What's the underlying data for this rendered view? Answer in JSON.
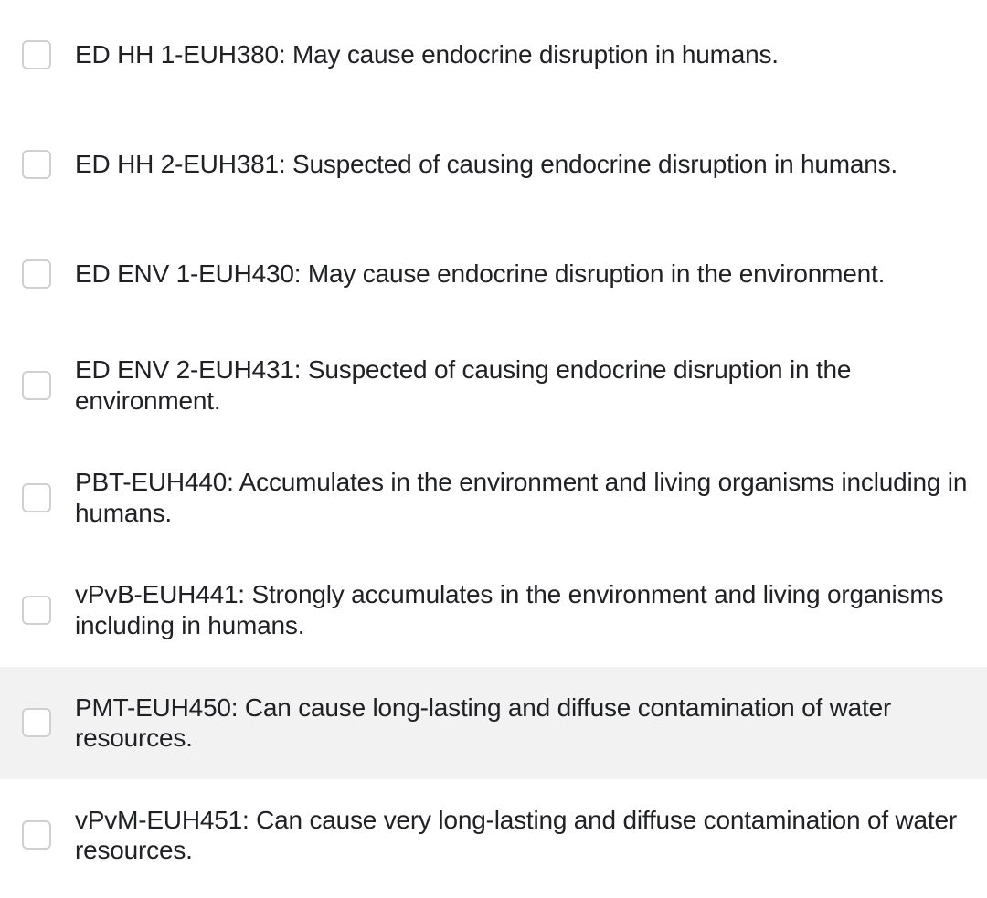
{
  "checklist": {
    "items": [
      {
        "label": "ED HH 1-EUH380: May cause endocrine disruption in humans.",
        "checked": false,
        "highlighted": false
      },
      {
        "label": "ED HH 2-EUH381: Suspected of causing endocrine disruption in humans.",
        "checked": false,
        "highlighted": false
      },
      {
        "label": "ED ENV 1-EUH430: May cause endocrine disruption in the environment.",
        "checked": false,
        "highlighted": false
      },
      {
        "label": "ED ENV 2-EUH431: Suspected of causing endocrine disruption in the environment.",
        "checked": false,
        "highlighted": false
      },
      {
        "label": "PBT-EUH440: Accumulates in the environment and living organisms including in humans.",
        "checked": false,
        "highlighted": false
      },
      {
        "label": "vPvB-EUH441: Strongly accumulates in the environment and living organisms including in humans.",
        "checked": false,
        "highlighted": false
      },
      {
        "label": "PMT-EUH450: Can cause long-lasting and diffuse contamination of water resources.",
        "checked": false,
        "highlighted": true
      },
      {
        "label": "vPvM-EUH451: Can cause very long-lasting and diffuse contamination of water resources.",
        "checked": false,
        "highlighted": false
      }
    ]
  },
  "styling": {
    "background_color": "#ffffff",
    "highlight_color": "#f2f2f2",
    "text_color": "#202124",
    "checkbox_border_color": "#d0d0d0",
    "checkbox_border_radius": 6,
    "font_size": 28,
    "font_family": "Arial"
  }
}
